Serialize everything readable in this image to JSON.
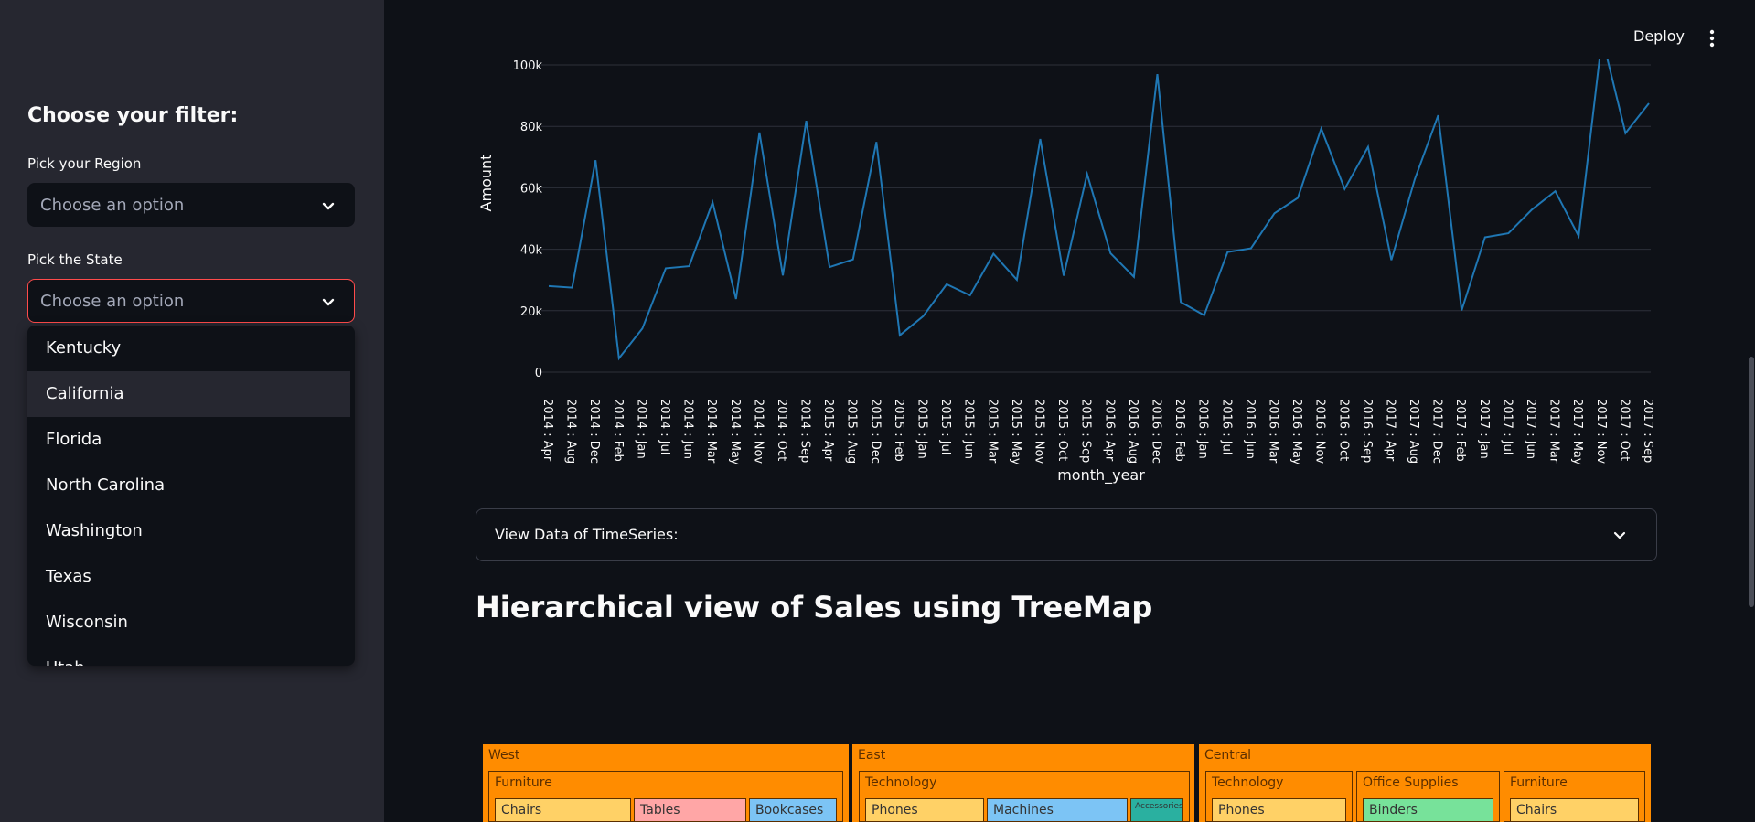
{
  "sidebar": {
    "title": "Choose your filter:",
    "region_label": "Pick your Region",
    "region_placeholder": "Choose an option",
    "state_label": "Pick the State",
    "state_placeholder": "Choose an option",
    "state_options": [
      "Kentucky",
      "California",
      "Florida",
      "North Carolina",
      "Washington",
      "Texas",
      "Wisconsin",
      "Utah"
    ],
    "highlighted_option": "California"
  },
  "header": {
    "deploy_label": "Deploy"
  },
  "expander": {
    "label": "View Data of TimeSeries:"
  },
  "section_title": "Hierarchical view of Sales using TreeMap",
  "chart_data": {
    "type": "line",
    "xlabel": "month_year",
    "ylabel": "Amount",
    "ylim": [
      0,
      100000
    ],
    "yticks": [
      "0",
      "20k",
      "40k",
      "60k",
      "80k",
      "100k"
    ],
    "grid": true,
    "series_color": "#1f77b4",
    "categories": [
      "2014 : Apr",
      "2014 : Aug",
      "2014 : Dec",
      "2014 : Feb",
      "2014 : Jan",
      "2014 : Jul",
      "2014 : Jun",
      "2014 : Mar",
      "2014 : May",
      "2014 : Nov",
      "2014 : Oct",
      "2014 : Sep",
      "2015 : Apr",
      "2015 : Aug",
      "2015 : Dec",
      "2015 : Feb",
      "2015 : Jan",
      "2015 : Jul",
      "2015 : Jun",
      "2015 : Mar",
      "2015 : May",
      "2015 : Nov",
      "2015 : Oct",
      "2015 : Sep",
      "2016 : Apr",
      "2016 : Aug",
      "2016 : Dec",
      "2016 : Feb",
      "2016 : Jan",
      "2016 : Jul",
      "2016 : Jun",
      "2016 : Mar",
      "2016 : May",
      "2016 : Nov",
      "2016 : Oct",
      "2016 : Sep",
      "2017 : Apr",
      "2017 : Aug",
      "2017 : Dec",
      "2017 : Feb",
      "2017 : Jan",
      "2017 : Jul",
      "2017 : Jun",
      "2017 : Mar",
      "2017 : May",
      "2017 : Nov",
      "2017 : Oct",
      "2017 : Sep"
    ],
    "values": [
      28000,
      27500,
      69000,
      4500,
      14200,
      33800,
      34500,
      55300,
      23800,
      78000,
      31500,
      81800,
      34200,
      36700,
      74900,
      12000,
      18200,
      28600,
      25000,
      38500,
      30100,
      75900,
      31400,
      64500,
      38700,
      31000,
      97000,
      22800,
      18500,
      39100,
      40300,
      51700,
      56700,
      79300,
      59600,
      73300,
      36500,
      62800,
      83600,
      20100,
      43900,
      45200,
      52900,
      58900,
      44300,
      109000,
      77800,
      87500
    ]
  },
  "treemap": {
    "regions": [
      {
        "name": "West",
        "categories": [
          {
            "name": "Furniture",
            "items": [
              "Chairs",
              "Tables",
              "Bookcases"
            ]
          }
        ]
      },
      {
        "name": "East",
        "categories": [
          {
            "name": "Technology",
            "items": [
              "Phones",
              "Machines",
              "Accessories"
            ]
          }
        ]
      },
      {
        "name": "Central",
        "categories": [
          {
            "name": "Technology",
            "items": [
              "Phones"
            ]
          },
          {
            "name": "Office Supplies",
            "items": [
              "Binders"
            ]
          },
          {
            "name": "Furniture",
            "items": [
              "Chairs"
            ]
          }
        ]
      }
    ],
    "colors": {
      "region": "#ff8c00",
      "chairs": "#ffd166",
      "tables": "#ffa6a6",
      "bookcases": "#7cc4f5",
      "phones": "#ffd166",
      "machines": "#7cc4f5",
      "accessories": "#2ab0a0",
      "binders": "#77e29a"
    }
  }
}
